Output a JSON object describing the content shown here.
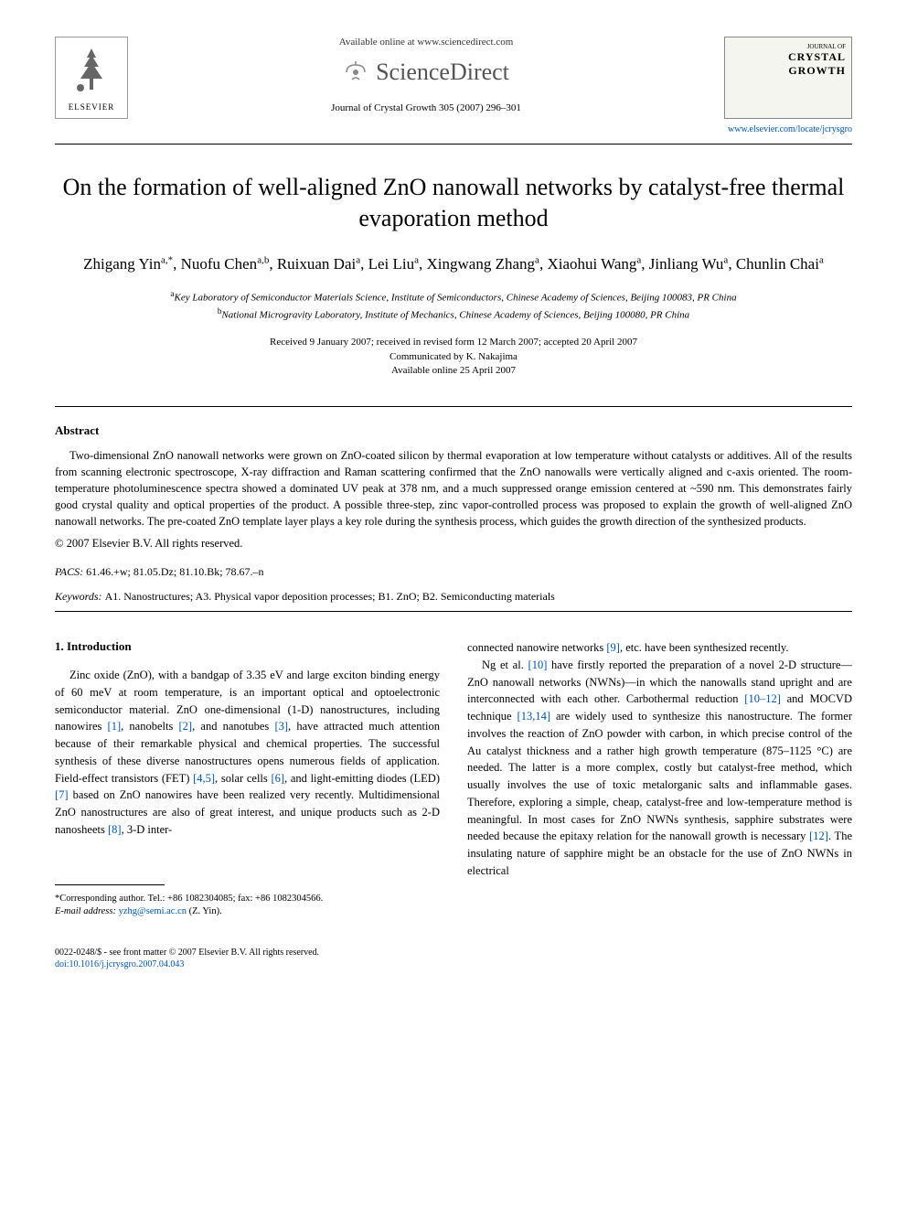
{
  "header": {
    "available_online": "Available online at www.sciencedirect.com",
    "sciencedirect": "ScienceDirect",
    "citation": "Journal of Crystal Growth 305 (2007) 296–301",
    "publisher_name": "ELSEVIER",
    "journal_of": "JOURNAL OF",
    "journal_name1": "CRYSTAL",
    "journal_name2": "GROWTH",
    "journal_url": "www.elsevier.com/locate/jcrysgro"
  },
  "title": "On the formation of well-aligned ZnO nanowall networks by catalyst-free thermal evaporation method",
  "authors_html": "Zhigang Yin<sup>a,*</sup>, Nuofu Chen<sup>a,b</sup>, Ruixuan Dai<sup>a</sup>, Lei Liu<sup>a</sup>, Xingwang Zhang<sup>a</sup>, Xiaohui Wang<sup>a</sup>, Jinliang Wu<sup>a</sup>, Chunlin Chai<sup>a</sup>",
  "affiliations": {
    "a": "Key Laboratory of Semiconductor Materials Science, Institute of Semiconductors, Chinese Academy of Sciences, Beijing 100083, PR China",
    "b": "National Microgravity Laboratory, Institute of Mechanics, Chinese Academy of Sciences, Beijing 100080, PR China"
  },
  "dates": {
    "received": "Received 9 January 2007; received in revised form 12 March 2007; accepted 20 April 2007",
    "communicated": "Communicated by K. Nakajima",
    "online": "Available online 25 April 2007"
  },
  "abstract": {
    "heading": "Abstract",
    "text": "Two-dimensional ZnO nanowall networks were grown on ZnO-coated silicon by thermal evaporation at low temperature without catalysts or additives. All of the results from scanning electronic spectroscope, X-ray diffraction and Raman scattering confirmed that the ZnO nanowalls were vertically aligned and c-axis oriented. The room-temperature photoluminescence spectra showed a dominated UV peak at 378 nm, and a much suppressed orange emission centered at ~590 nm. This demonstrates fairly good crystal quality and optical properties of the product. A possible three-step, zinc vapor-controlled process was proposed to explain the growth of well-aligned ZnO nanowall networks. The pre-coated ZnO template layer plays a key role during the synthesis process, which guides the growth direction of the synthesized products.",
    "copyright": "© 2007 Elsevier B.V. All rights reserved."
  },
  "pacs": {
    "label": "PACS:",
    "value": "61.46.+w; 81.05.Dz; 81.10.Bk; 78.67.–n"
  },
  "keywords": {
    "label": "Keywords:",
    "value": "A1. Nanostructures; A3. Physical vapor deposition processes; B1. ZnO; B2. Semiconducting materials"
  },
  "intro": {
    "heading": "1.  Introduction",
    "col1_html": "Zinc oxide (ZnO), with a bandgap of 3.35 eV and large exciton binding energy of 60 meV at room temperature, is an important optical and optoelectronic semiconductor material. ZnO one-dimensional (1-D) nanostructures, including nanowires <span class=\"ref\">[1]</span>, nanobelts <span class=\"ref\">[2]</span>, and nanotubes <span class=\"ref\">[3]</span>, have attracted much attention because of their remarkable physical and chemical properties. The successful synthesis of these diverse nanostructures opens numerous fields of application. Field-effect transistors (FET) <span class=\"ref\">[4,5]</span>, solar cells <span class=\"ref\">[6]</span>, and light-emitting diodes (LED) <span class=\"ref\">[7]</span> based on ZnO nanowires have been realized very recently. Multidimensional ZnO nanostructures are also of great interest, and unique products such as 2-D nanosheets <span class=\"ref\">[8]</span>, 3-D inter-",
    "col2_p1_html": "connected nanowire networks <span class=\"ref\">[9]</span>, etc. have been synthesized recently.",
    "col2_p2_html": "Ng et al. <span class=\"ref\">[10]</span> have firstly reported the preparation of a novel 2-D structure—ZnO nanowall networks (NWNs)—in which the nanowalls stand upright and are interconnected with each other. Carbothermal reduction <span class=\"ref\">[10–12]</span> and MOCVD technique <span class=\"ref\">[13,14]</span> are widely used to synthesize this nanostructure. The former involves the reaction of ZnO powder with carbon, in which precise control of the Au catalyst thickness and a rather high growth temperature (875–1125 °C) are needed. The latter is a more complex, costly but catalyst-free method, which usually involves the use of toxic metalorganic salts and inflammable gases. Therefore, exploring a simple, cheap, catalyst-free and low-temperature method is meaningful. In most cases for ZnO NWNs synthesis, sapphire substrates were needed because the epitaxy relation for the nanowall growth is necessary <span class=\"ref\">[12]</span>. The insulating nature of sapphire might be an obstacle for the use of ZnO NWNs in electrical"
  },
  "footnote": {
    "corresponding": "*Corresponding author. Tel.: +86 1082304085; fax: +86 1082304566.",
    "email_label": "E-mail address:",
    "email": "yzhg@semi.ac.cn",
    "email_name": "(Z. Yin)."
  },
  "footer": {
    "front_matter": "0022-0248/$ - see front matter © 2007 Elsevier B.V. All rights reserved.",
    "doi": "doi:10.1016/j.jcrysgro.2007.04.043"
  },
  "colors": {
    "link": "#0055aa",
    "text": "#000000",
    "background": "#ffffff"
  }
}
